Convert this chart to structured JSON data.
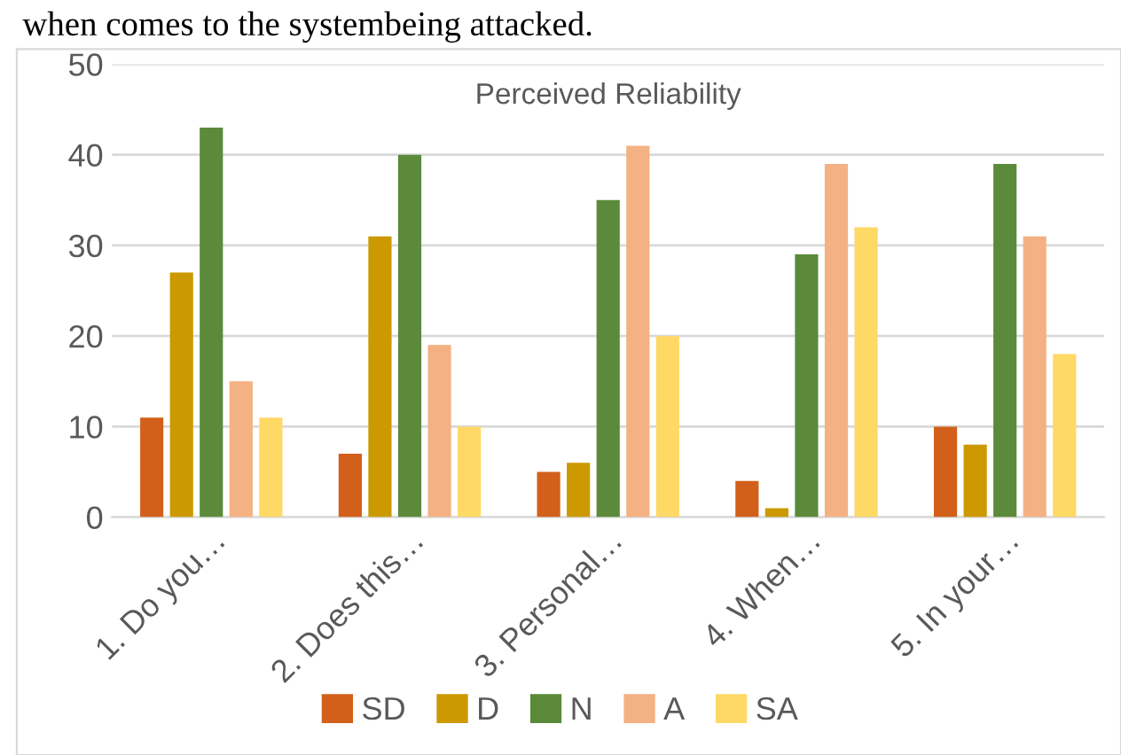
{
  "chart_data": {
    "type": "bar",
    "title": "Perceived Reliability",
    "annotations": [
      "when comes to the systembeing attacked."
    ],
    "categories": [
      "1. Do you…",
      "2. Does this…",
      "3. Personal…",
      "4. When…",
      "5. In your…"
    ],
    "series": [
      {
        "name": "SD",
        "color": "#d2601a",
        "values": [
          11,
          7,
          5,
          4,
          10
        ]
      },
      {
        "name": "D",
        "color": "#cc9900",
        "values": [
          27,
          31,
          6,
          1,
          8
        ]
      },
      {
        "name": "N",
        "color": "#5a8a3a",
        "values": [
          43,
          40,
          35,
          29,
          39
        ]
      },
      {
        "name": "A",
        "color": "#f4b183",
        "values": [
          15,
          19,
          41,
          39,
          31
        ]
      },
      {
        "name": "SA",
        "color": "#ffd966",
        "values": [
          11,
          10,
          20,
          32,
          18
        ]
      }
    ],
    "ylim": [
      0,
      50
    ],
    "yticks": [
      0,
      10,
      20,
      30,
      40,
      50
    ],
    "grid": "y",
    "legend": "bottom"
  }
}
